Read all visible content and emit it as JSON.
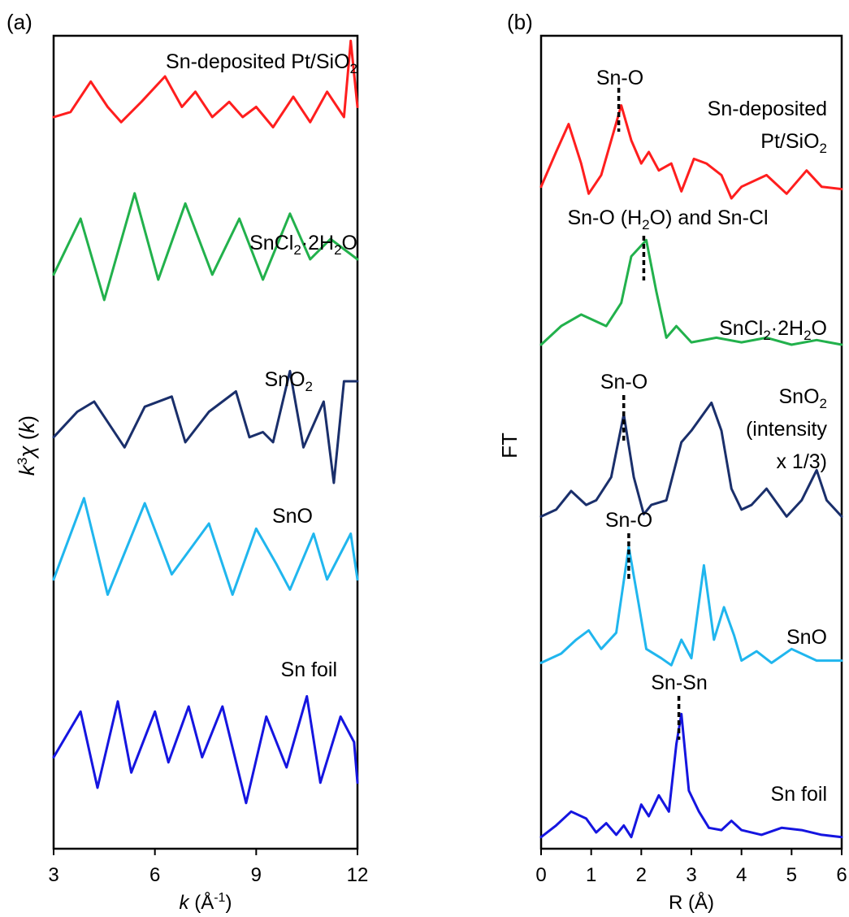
{
  "chart_data": [
    {
      "panel_label": "(a)",
      "type": "line",
      "xlabel": "k (Å-1)",
      "ylabel": "k3χ (k)",
      "xlim": [
        3,
        12
      ],
      "ylim": [
        0,
        8
      ],
      "xticks": [
        "3",
        "6",
        "9",
        "12"
      ],
      "grid": false,
      "legend": "none",
      "series": [
        {
          "label": "Sn-deposited Pt/SiO2",
          "color": "#ff1e1e",
          "x": [
            3.0,
            3.5,
            4.1,
            4.6,
            5.0,
            5.6,
            6.3,
            6.8,
            7.2,
            7.7,
            8.2,
            8.6,
            9.0,
            9.5,
            10.1,
            10.6,
            11.1,
            11.6,
            11.8,
            12.0
          ],
          "y": [
            7.2,
            7.25,
            7.55,
            7.3,
            7.15,
            7.35,
            7.6,
            7.3,
            7.45,
            7.2,
            7.35,
            7.2,
            7.3,
            7.1,
            7.4,
            7.15,
            7.45,
            7.2,
            7.95,
            7.3
          ]
        },
        {
          "label": "SnCl2·2H2O",
          "color": "#22b14c",
          "x": [
            3.0,
            3.8,
            4.5,
            5.4,
            6.1,
            6.9,
            7.7,
            8.5,
            9.2,
            10.0,
            10.6,
            11.2,
            12.0
          ],
          "y": [
            5.65,
            6.2,
            5.4,
            6.45,
            5.6,
            6.35,
            5.65,
            6.2,
            5.6,
            6.25,
            5.8,
            6.0,
            5.8
          ]
        },
        {
          "label": "SnO2",
          "color": "#1a2f6b",
          "x": [
            3.0,
            3.7,
            4.2,
            5.1,
            5.7,
            6.5,
            6.9,
            7.6,
            8.4,
            8.8,
            9.2,
            9.5,
            10.0,
            10.4,
            11.0,
            11.3,
            11.6,
            12.0
          ],
          "y": [
            4.05,
            4.3,
            4.4,
            3.95,
            4.35,
            4.45,
            4.0,
            4.3,
            4.5,
            4.05,
            4.1,
            4.0,
            4.7,
            3.95,
            4.4,
            3.6,
            4.6,
            4.6
          ]
        },
        {
          "label": "SnO",
          "color": "#20b6ee",
          "x": [
            3.0,
            3.9,
            4.6,
            5.7,
            6.5,
            7.6,
            8.3,
            9.0,
            9.6,
            10.0,
            10.7,
            11.1,
            11.8,
            12.0
          ],
          "y": [
            2.65,
            3.45,
            2.5,
            3.4,
            2.7,
            3.2,
            2.5,
            3.15,
            2.8,
            2.55,
            3.1,
            2.65,
            3.1,
            2.65
          ]
        },
        {
          "label": "Sn foil",
          "color": "#1515e0",
          "x": [
            3.0,
            3.8,
            4.3,
            4.9,
            5.3,
            6.0,
            6.4,
            7.0,
            7.4,
            8.0,
            8.7,
            9.3,
            9.9,
            10.5,
            10.9,
            11.5,
            11.9,
            12.0
          ],
          "y": [
            0.9,
            1.35,
            0.6,
            1.45,
            0.75,
            1.35,
            0.85,
            1.4,
            0.9,
            1.4,
            0.45,
            1.3,
            0.8,
            1.5,
            0.65,
            1.3,
            1.05,
            0.65
          ]
        }
      ],
      "annotations": [
        {
          "text": "Sn-deposited Pt/SiO2",
          "series": "Sn-deposited Pt/SiO2"
        },
        {
          "text": "SnCl2·2H2O",
          "series": "SnCl2·2H2O"
        },
        {
          "text": "SnO2",
          "series": "SnO2"
        },
        {
          "text": "SnO",
          "series": "SnO"
        },
        {
          "text": "Sn foil",
          "series": "Sn foil"
        }
      ]
    },
    {
      "panel_label": "(b)",
      "type": "line",
      "xlabel": "R (Å)",
      "ylabel": "FT",
      "xlim": [
        0,
        6
      ],
      "ylim": [
        0,
        35
      ],
      "xticks": [
        "0",
        "1",
        "2",
        "3",
        "4",
        "5",
        "6"
      ],
      "grid": false,
      "legend": "none",
      "series": [
        {
          "label": "Sn-deposited Pt/SiO2",
          "color": "#ff1e1e",
          "x": [
            0.0,
            0.3,
            0.55,
            0.8,
            0.95,
            1.2,
            1.6,
            1.8,
            2.0,
            2.15,
            2.35,
            2.6,
            2.8,
            3.05,
            3.3,
            3.6,
            3.8,
            4.0,
            4.5,
            4.9,
            5.3,
            5.6,
            6.0
          ],
          "y": [
            28.5,
            30.0,
            31.2,
            29.5,
            28.2,
            29.0,
            32.0,
            30.5,
            29.5,
            30.0,
            29.2,
            29.5,
            28.3,
            29.7,
            29.5,
            29.0,
            28.0,
            28.5,
            29.0,
            28.2,
            29.2,
            28.5,
            28.4
          ]
        },
        {
          "label": "SnCl2·2H2O",
          "color": "#22b14c",
          "x": [
            0.0,
            0.4,
            0.8,
            1.3,
            1.6,
            1.8,
            2.1,
            2.3,
            2.5,
            2.7,
            3.0,
            3.5,
            4.0,
            4.5,
            5.0,
            5.5,
            6.0
          ],
          "y": [
            21.7,
            22.5,
            23.0,
            22.5,
            23.5,
            25.5,
            26.2,
            24.0,
            22.0,
            22.5,
            21.8,
            22.0,
            21.8,
            22.0,
            21.7,
            21.9,
            21.7
          ]
        },
        {
          "label": "SnO2",
          "color": "#1a2f6b",
          "x": [
            0.0,
            0.3,
            0.6,
            0.9,
            1.1,
            1.4,
            1.65,
            1.85,
            2.05,
            2.2,
            2.5,
            2.8,
            3.0,
            3.4,
            3.6,
            3.8,
            4.0,
            4.2,
            4.5,
            4.9,
            5.2,
            5.5,
            5.7,
            6.0
          ],
          "y": [
            14.3,
            14.6,
            15.4,
            14.8,
            15.0,
            16.0,
            18.7,
            16.0,
            14.4,
            14.8,
            15.0,
            17.5,
            18.0,
            19.2,
            18.0,
            15.5,
            14.6,
            14.8,
            15.5,
            14.3,
            15.0,
            16.3,
            15.0,
            14.3
          ]
        },
        {
          "label": "SnO",
          "color": "#20b6ee",
          "x": [
            0.0,
            0.4,
            0.7,
            0.95,
            1.2,
            1.5,
            1.75,
            1.95,
            2.1,
            2.4,
            2.6,
            2.8,
            3.0,
            3.25,
            3.45,
            3.65,
            3.85,
            4.0,
            4.3,
            4.6,
            5.0,
            5.5,
            6.0
          ],
          "y": [
            8.0,
            8.4,
            9.0,
            9.4,
            8.6,
            9.3,
            13.0,
            10.5,
            8.6,
            8.2,
            7.9,
            9.0,
            8.2,
            12.2,
            9.0,
            10.4,
            9.2,
            8.1,
            8.5,
            8.0,
            8.6,
            8.1,
            8.1
          ]
        },
        {
          "label": "Sn foil",
          "color": "#1515e0",
          "x": [
            0.0,
            0.3,
            0.6,
            0.9,
            1.1,
            1.3,
            1.5,
            1.65,
            1.8,
            2.0,
            2.15,
            2.35,
            2.55,
            2.7,
            2.8,
            2.95,
            3.15,
            3.35,
            3.6,
            3.8,
            4.0,
            4.4,
            4.8,
            5.2,
            5.6,
            6.0
          ],
          "y": [
            0.5,
            1.0,
            1.6,
            1.3,
            0.7,
            1.1,
            0.6,
            1.0,
            0.5,
            1.9,
            1.4,
            2.3,
            1.6,
            4.5,
            5.8,
            2.5,
            1.6,
            0.9,
            0.8,
            1.2,
            0.8,
            0.6,
            0.9,
            0.8,
            0.6,
            0.5
          ]
        }
      ],
      "annotations": [
        {
          "text": "Sn-O",
          "x": 1.55,
          "series": "Sn-deposited Pt/SiO2"
        },
        {
          "text": "Sn-deposited",
          "series": "Sn-deposited Pt/SiO2"
        },
        {
          "text": "Pt/SiO2",
          "series": "Sn-deposited Pt/SiO2"
        },
        {
          "text": "Sn-O (H2O) and Sn-Cl",
          "x": 2.05,
          "series": "SnCl2·2H2O"
        },
        {
          "text": "SnCl2·2H2O",
          "series": "SnCl2·2H2O"
        },
        {
          "text": "Sn-O",
          "x": 1.65,
          "series": "SnO2"
        },
        {
          "text": "SnO2",
          "series": "SnO2"
        },
        {
          "text": "(intensity",
          "series": "SnO2"
        },
        {
          "text": "x 1/3)",
          "series": "SnO2"
        },
        {
          "text": "Sn-O",
          "x": 1.75,
          "series": "SnO"
        },
        {
          "text": "SnO",
          "series": "SnO"
        },
        {
          "text": "Sn-Sn",
          "x": 2.75,
          "series": "Sn foil"
        },
        {
          "text": "Sn foil",
          "series": "Sn foil"
        }
      ]
    }
  ]
}
